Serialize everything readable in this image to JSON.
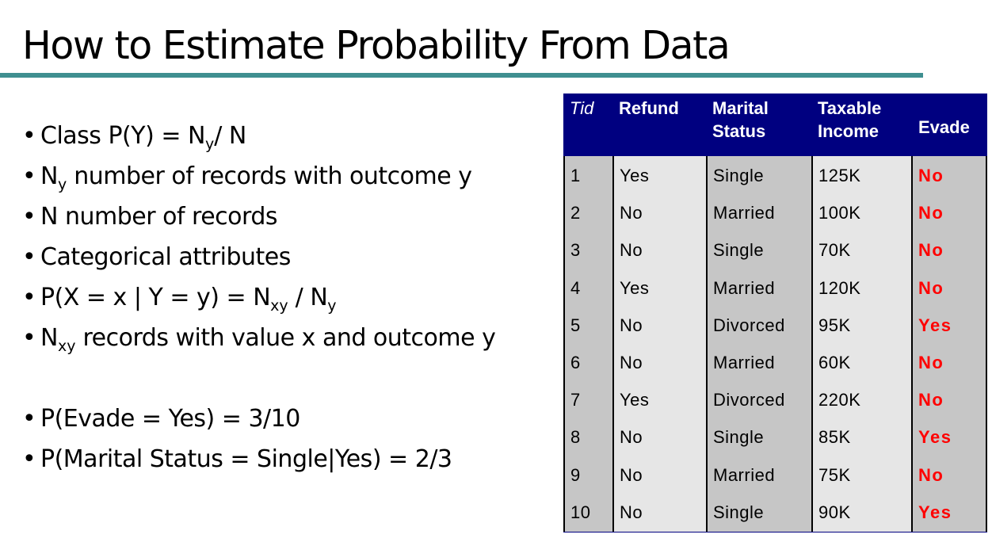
{
  "title": "How to Estimate Probability From Data",
  "bullets": [
    {
      "parts": [
        {
          "t": "Class P(Y) = N"
        },
        {
          "sub": "y"
        },
        {
          "t": "/ N"
        }
      ]
    },
    {
      "parts": [
        {
          "t": "N"
        },
        {
          "sub": "y"
        },
        {
          "t": " number of records with outcome y"
        }
      ]
    },
    {
      "parts": [
        {
          "t": "N number of records"
        }
      ]
    },
    {
      "parts": [
        {
          "t": "Categorical attributes"
        }
      ]
    },
    {
      "parts": [
        {
          "t": "P(X = x | Y = y) = N"
        },
        {
          "sub": "xy"
        },
        {
          "t": " / N"
        },
        {
          "sub": "y"
        }
      ]
    },
    {
      "parts": [
        {
          "t": "N"
        },
        {
          "sub": "xy"
        },
        {
          "t": " records with value x and outcome y"
        }
      ]
    },
    {
      "parts": [
        {
          "t": "P(Evade = Yes) = 3/10"
        }
      ]
    },
    {
      "parts": [
        {
          "t": "P(Marital Status = Single|Yes)  = 2/3"
        }
      ]
    }
  ],
  "table": {
    "headers": [
      "Tid",
      "Refund",
      "Marital\nStatus",
      "Taxable\nIncome",
      "Evade"
    ],
    "rows": [
      [
        "1",
        "Yes",
        "Single",
        "125K",
        "No"
      ],
      [
        "2",
        "No",
        "Married",
        "100K",
        "No"
      ],
      [
        "3",
        "No",
        "Single",
        "70K",
        "No"
      ],
      [
        "4",
        "Yes",
        "Married",
        "120K",
        "No"
      ],
      [
        "5",
        "No",
        "Divorced",
        "95K",
        "Yes"
      ],
      [
        "6",
        "No",
        "Married",
        "60K",
        "No"
      ],
      [
        "7",
        "Yes",
        "Divorced",
        "220K",
        "No"
      ],
      [
        "8",
        "No",
        "Single",
        "85K",
        "Yes"
      ],
      [
        "9",
        "No",
        "Married",
        "75K",
        "No"
      ],
      [
        "10",
        "No",
        "Single",
        "90K",
        "Yes"
      ]
    ],
    "colors": {
      "header_bg": "#000080",
      "header_text": "#ffffff",
      "evade_text": "#ff0000",
      "cell_light": "#e6e6e6",
      "cell_dark": "#c6c6c6"
    }
  },
  "accent_rule_color": "#3f8f90"
}
